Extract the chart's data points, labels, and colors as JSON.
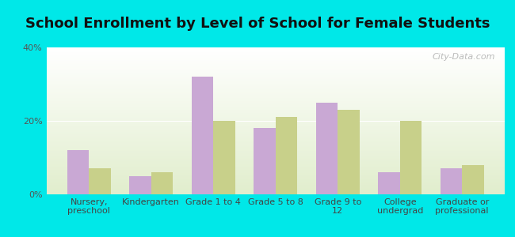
{
  "title": "School Enrollment by Level of School for Female Students",
  "categories": [
    "Nursery,\npreschool",
    "Kindergarten",
    "Grade 1 to 4",
    "Grade 5 to 8",
    "Grade 9 to\n12",
    "College\nundergrad",
    "Graduate or\nprofessional"
  ],
  "mayer_values": [
    12,
    5,
    32,
    18,
    25,
    6,
    7
  ],
  "minnesota_values": [
    7,
    6,
    20,
    21,
    23,
    20,
    8
  ],
  "mayer_color": "#c9a8d4",
  "minnesota_color": "#c8d08a",
  "ylim": [
    0,
    40
  ],
  "yticks": [
    0,
    20,
    40
  ],
  "ytick_labels": [
    "0%",
    "20%",
    "40%"
  ],
  "background_color": "#00e8e8",
  "title_fontsize": 13,
  "tick_fontsize": 8,
  "legend_fontsize": 10,
  "bar_width": 0.35,
  "watermark": "City-Data.com"
}
